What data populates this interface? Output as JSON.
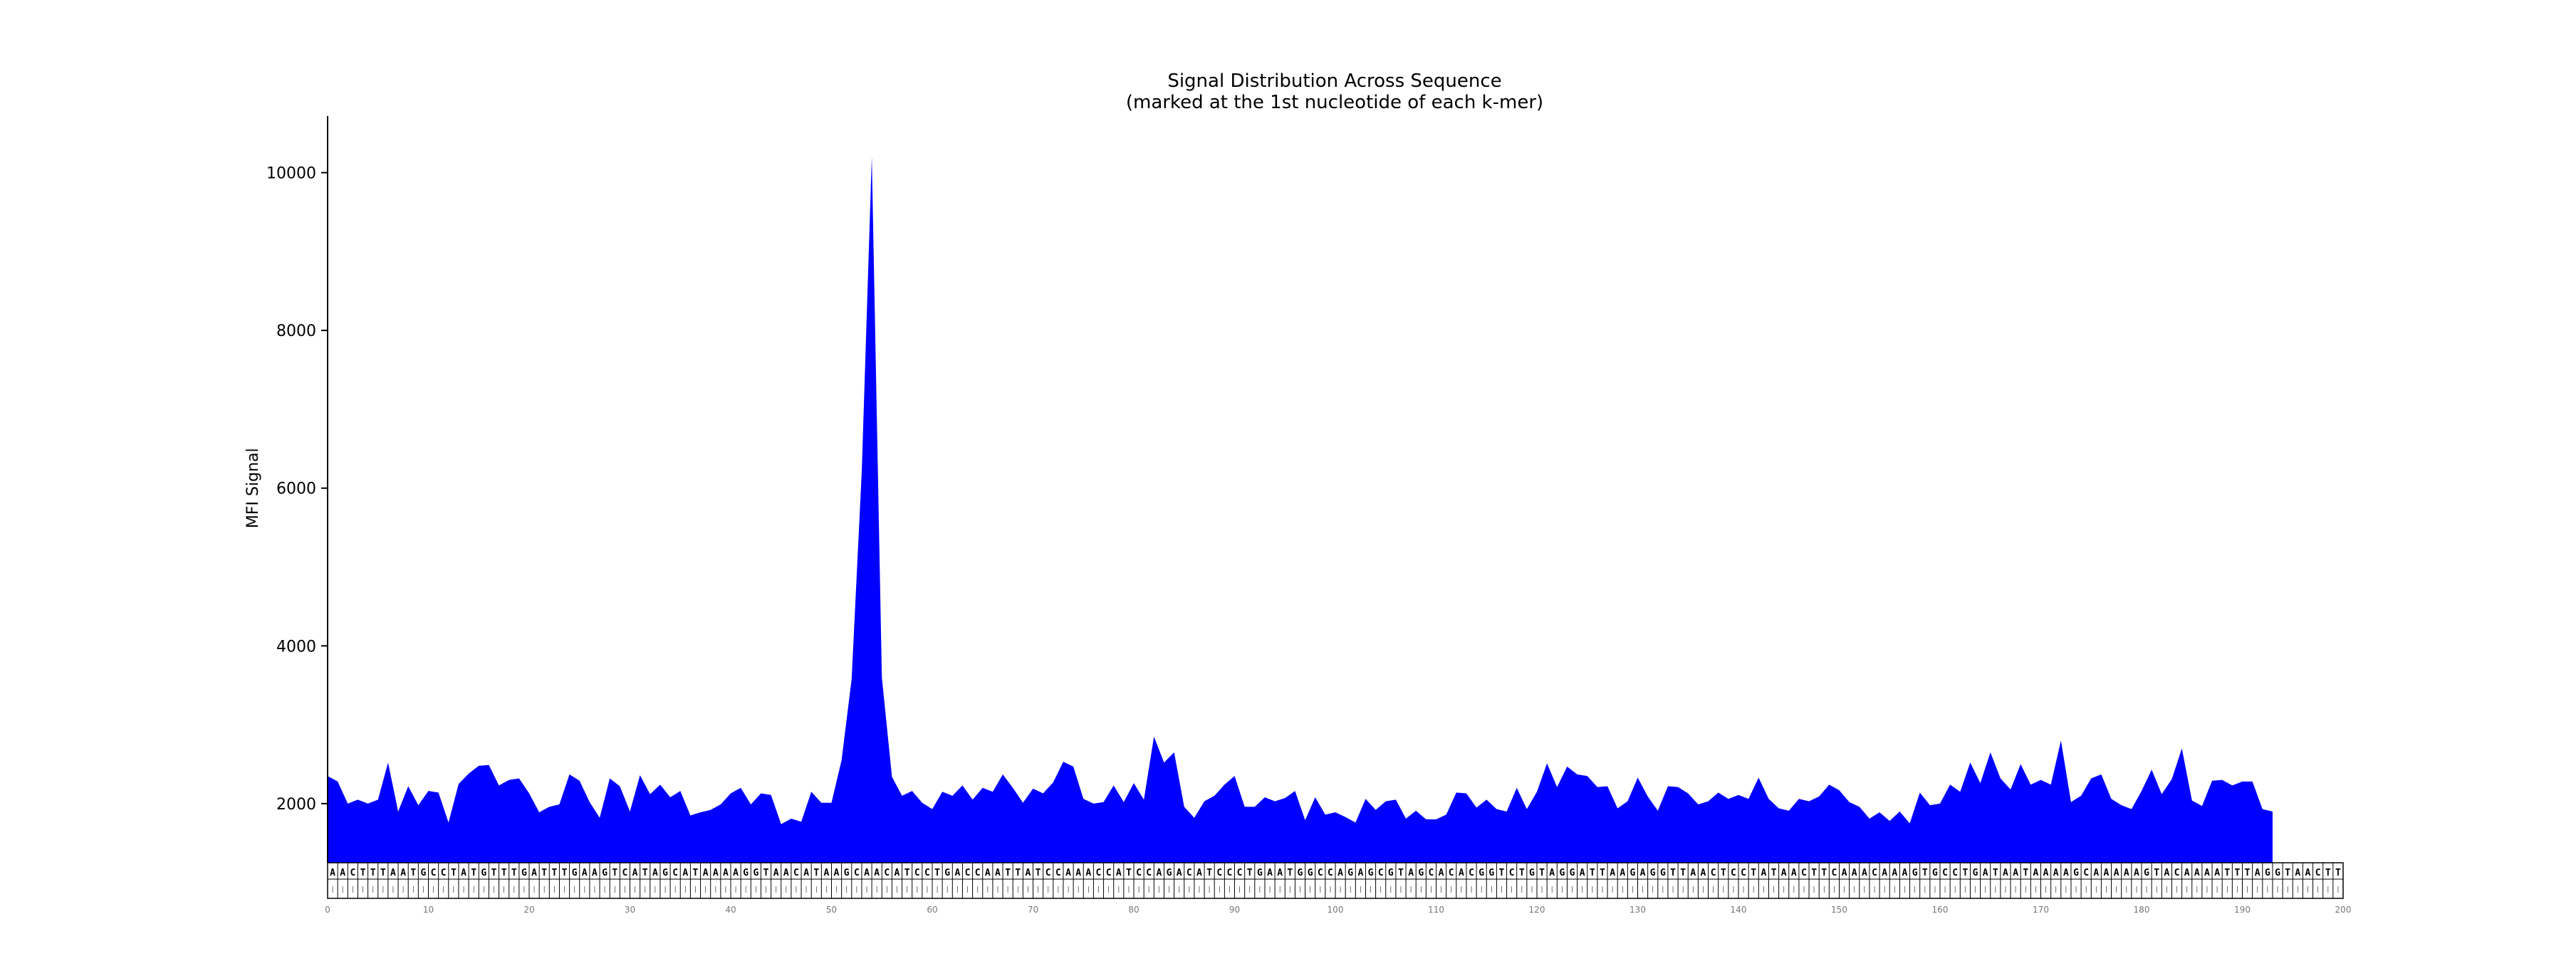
{
  "chart_data": {
    "type": "area",
    "title": "Signal Distribution Across Sequence",
    "subtitle": "(marked at the 1st nucleotide of each k-mer)",
    "ylabel": "MFI Signal",
    "xlabel": "",
    "xlim": [
      0,
      200
    ],
    "ylim": [
      1250,
      10700
    ],
    "y_ticks": [
      2000,
      4000,
      6000,
      8000,
      10000
    ],
    "x_ticks": [
      0,
      10,
      20,
      30,
      40,
      50,
      60,
      70,
      80,
      90,
      100,
      110,
      120,
      130,
      140,
      150,
      160,
      170,
      180,
      190,
      200
    ],
    "fill_color": "#0000ff",
    "sequence": "AACTTTAATGCCTATGTTTGATTTGAAGTCATAGCATAAAAGGTAACATAAGCAACATCCTGACCAATTATCCAAACCATCCAGACATCCCTGAATGGCCAGAGCGTAGCACACGGTCTGTAGGATTAAGAGGTTAACTCCTATAACTTCAAACAAAGTGCCTGATAATAAAAGCAAAAAGTACAAAATTTAGGTAACTT",
    "series": [
      {
        "values": [
          2350,
          2280,
          2000,
          2050,
          2000,
          2050,
          2520,
          1900,
          2220,
          1980,
          2160,
          2140,
          1760,
          2250,
          2380,
          2480,
          2490,
          2230,
          2300,
          2320,
          2130,
          1890,
          1960,
          1990,
          2370,
          2290,
          2020,
          1820,
          2320,
          2220,
          1900,
          2360,
          2120,
          2240,
          2080,
          2160,
          1850,
          1890,
          1920,
          1990,
          2130,
          2200,
          1990,
          2130,
          2110,
          1740,
          1810,
          1770,
          2150,
          2010,
          2010,
          2550,
          3580,
          6200,
          10200,
          3600,
          2340,
          2100,
          2160,
          2010,
          1930,
          2150,
          2100,
          2230,
          2050,
          2200,
          2150,
          2370,
          2200,
          2010,
          2190,
          2130,
          2270,
          2530,
          2470,
          2060,
          2000,
          2020,
          2230,
          2020,
          2260,
          2050,
          2850,
          2520,
          2650,
          1960,
          1820,
          2030,
          2100,
          2240,
          2350,
          1960,
          1960,
          2080,
          2030,
          2070,
          2160,
          1790,
          2080,
          1860,
          1890,
          1830,
          1760,
          2060,
          1920,
          2030,
          2050,
          1810,
          1910,
          1800,
          1800,
          1860,
          2140,
          2130,
          1950,
          2050,
          1930,
          1900,
          2200,
          1930,
          2150,
          2510,
          2210,
          2470,
          2370,
          2350,
          2210,
          2220,
          1940,
          2030,
          2330,
          2090,
          1910,
          2220,
          2210,
          2130,
          1990,
          2030,
          2140,
          2060,
          2110,
          2060,
          2330,
          2060,
          1940,
          1910,
          2060,
          2030,
          2090,
          2240,
          2170,
          2020,
          1960,
          1810,
          1890,
          1780,
          1900,
          1750,
          2140,
          1980,
          2000,
          2240,
          2150,
          2520,
          2260,
          2650,
          2320,
          2180,
          2500,
          2240,
          2300,
          2240,
          2800,
          2020,
          2100,
          2320,
          2370,
          2060,
          1980,
          1930,
          2160,
          2430,
          2120,
          2310,
          2700,
          2040,
          1970,
          2290,
          2300,
          2230,
          2280,
          2280,
          1930,
          1900
        ]
      }
    ]
  }
}
